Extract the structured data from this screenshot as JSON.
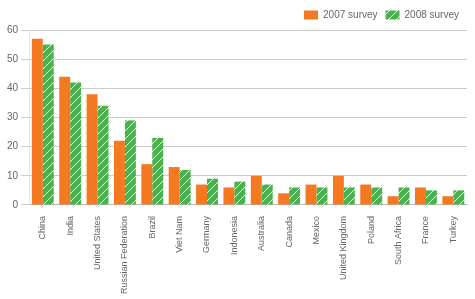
{
  "chart_data": {
    "type": "bar",
    "categories": [
      "China",
      "India",
      "United States",
      "Russian Federation",
      "Brazil",
      "Viet Nam",
      "Germany",
      "Indonesia",
      "Australia",
      "Canada",
      "Mexico",
      "United Kingdom",
      "Poland",
      "South Africa",
      "France",
      "Turkey"
    ],
    "series": [
      {
        "name": "2007 survey",
        "color": "#f47920",
        "values": [
          57,
          44,
          38,
          22,
          14,
          13,
          7,
          6,
          10,
          4,
          7,
          10,
          7,
          3,
          6,
          3
        ]
      },
      {
        "name": "2008 survey",
        "color": "#4caf50",
        "values": [
          55,
          42,
          34,
          29,
          23,
          12,
          9,
          8,
          7,
          6,
          6,
          6,
          6,
          6,
          5,
          5
        ]
      }
    ],
    "ylim": [
      0,
      60
    ],
    "yticks": [
      0,
      10,
      20,
      30,
      40,
      50,
      60
    ],
    "grid": true,
    "legend": "upper right"
  }
}
